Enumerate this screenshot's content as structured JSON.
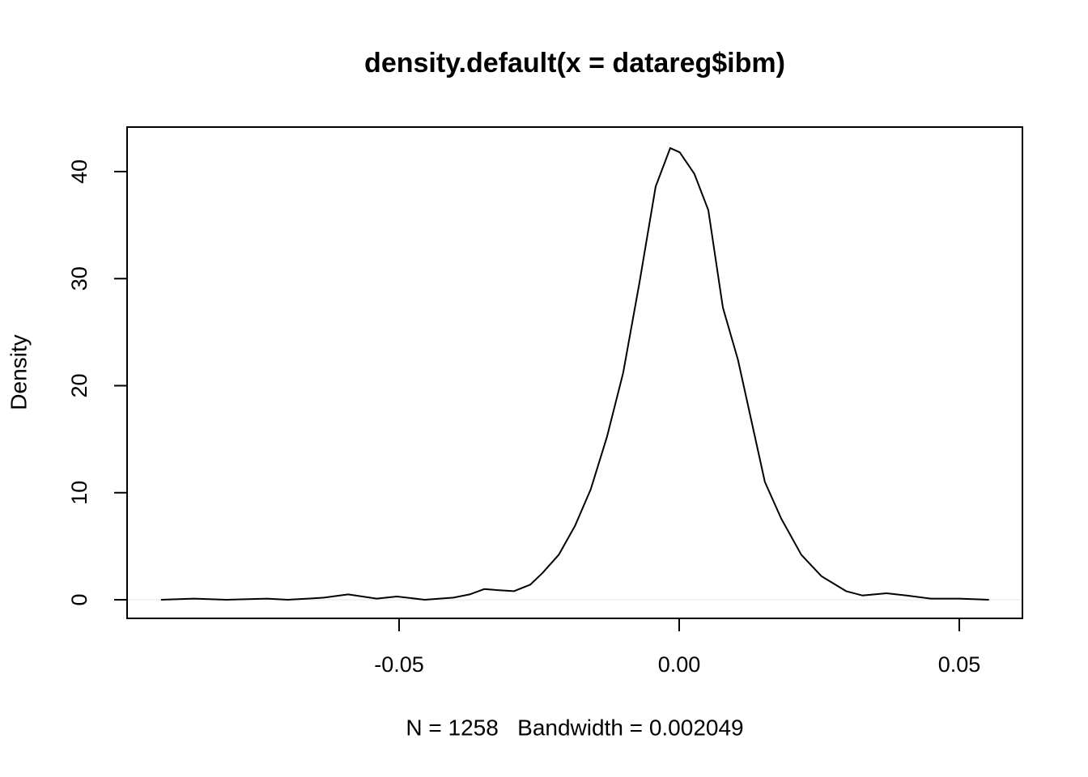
{
  "chart_data": {
    "type": "line",
    "title": "density.default(x = datareg$ibm)",
    "x_label": "N = 1258   Bandwidth = 0.002049",
    "y_label": "Density",
    "xlim": [
      -0.09855,
      0.06127
    ],
    "ylim": [
      -1.74,
      44.16
    ],
    "xticks": [
      -0.05,
      {
        "value": 0,
        "label": "0.00"
      },
      0.05
    ],
    "yticks": [
      0,
      10,
      20,
      30,
      40
    ],
    "color": "#000000",
    "x": [
      -0.0925,
      -0.0866,
      -0.0808,
      -0.0736,
      -0.0699,
      -0.0663,
      -0.0634,
      -0.0591,
      -0.054,
      -0.0504,
      -0.0454,
      -0.0403,
      -0.0374,
      -0.0348,
      -0.0324,
      -0.0295,
      -0.0266,
      -0.0244,
      -0.0215,
      -0.0186,
      -0.0158,
      -0.0129,
      -0.01,
      -0.0071,
      -0.0042,
      -0.0016,
      0.0001,
      0.0027,
      0.0052,
      0.0078,
      0.0105,
      0.0129,
      0.0153,
      0.0182,
      0.0218,
      0.0254,
      0.0298,
      0.0327,
      0.037,
      0.0406,
      0.0449,
      0.05,
      0.0553
    ],
    "values": [
      0,
      0.1,
      0,
      0.1,
      0,
      0.1,
      0.2,
      0.5,
      0.1,
      0.3,
      0,
      0.2,
      0.5,
      1.0,
      0.9,
      0.8,
      1.4,
      2.5,
      4.2,
      6.9,
      10.3,
      15.2,
      21.2,
      29.6,
      38.6,
      42.2,
      41.8,
      39.8,
      36.4,
      27.3,
      22.4,
      16.7,
      11.0,
      7.6,
      4.2,
      2.2,
      0.8,
      0.4,
      0.6,
      0.4,
      0.1,
      0.1,
      0
    ]
  }
}
